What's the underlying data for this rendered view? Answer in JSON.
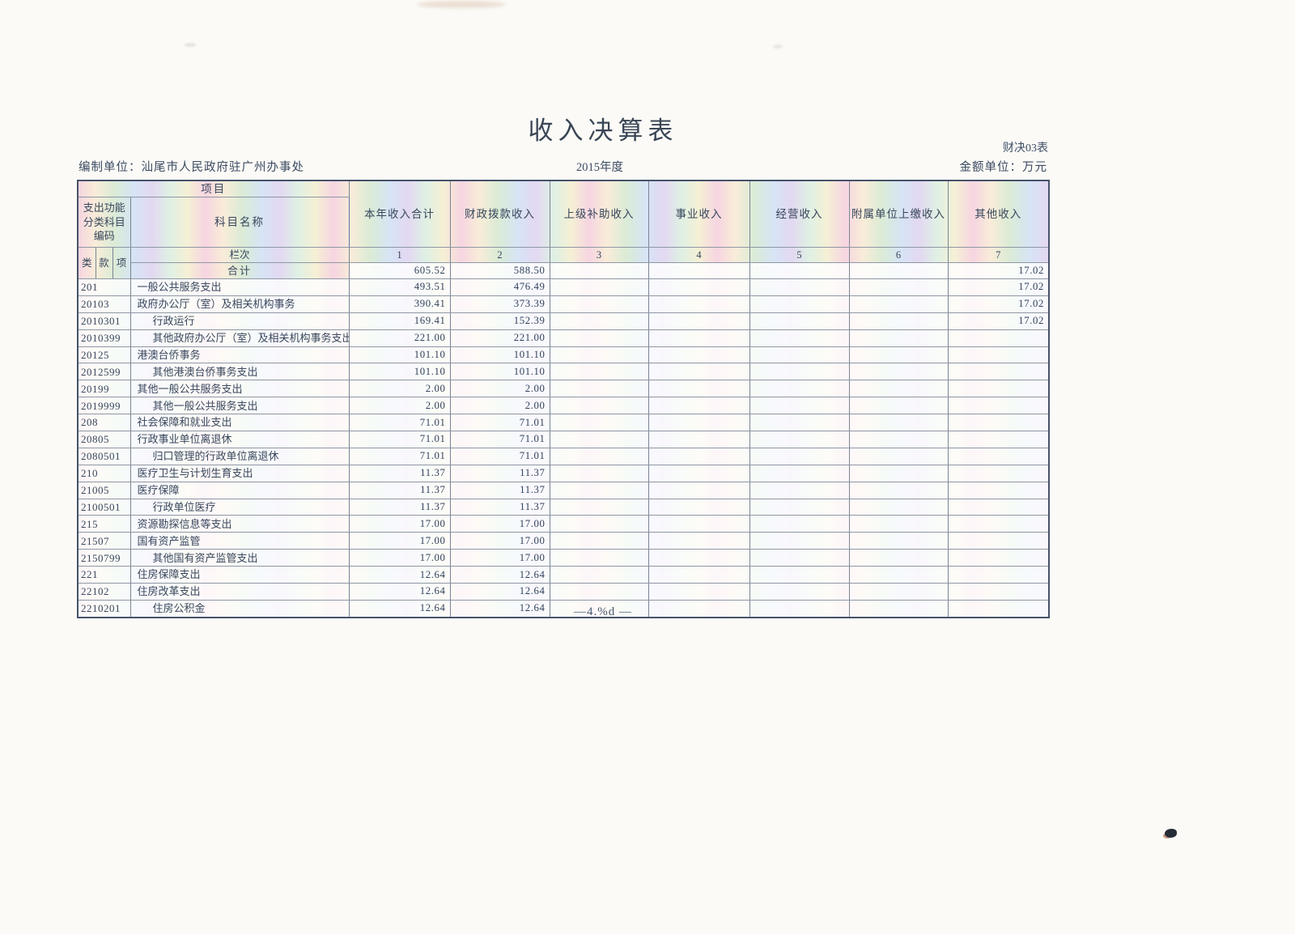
{
  "page": {
    "title": "收入决算表",
    "form_code": "财决03表",
    "prepared_by": "编制单位：汕尾市人民政府驻广州办事处",
    "year": "2015年度",
    "unit_label": "金额单位：万元",
    "footer": "—4.%d —"
  },
  "table": {
    "header": {
      "project_label": "项目",
      "code_label": "支出功能分类科目编码",
      "subject_label": "科目名称",
      "code_sub_labels": [
        "类",
        "款",
        "项"
      ],
      "column_row_label": "栏次",
      "total_row_label": "合计",
      "columns": [
        "本年收入合计",
        "财政拨款收入",
        "上级补助收入",
        "事业收入",
        "经营收入",
        "附属单位上缴收入",
        "其他收入"
      ],
      "column_numbers": [
        "1",
        "2",
        "3",
        "4",
        "5",
        "6",
        "7"
      ]
    },
    "total_row": {
      "values": [
        "605.52",
        "588.50",
        "",
        "",
        "",
        "",
        "17.02"
      ]
    },
    "rows": [
      {
        "code": "201",
        "name": "一般公共服务支出",
        "indent": 0,
        "values": [
          "493.51",
          "476.49",
          "",
          "",
          "",
          "",
          "17.02"
        ]
      },
      {
        "code": "20103",
        "name": "政府办公厅（室）及相关机构事务",
        "indent": 0,
        "values": [
          "390.41",
          "373.39",
          "",
          "",
          "",
          "",
          "17.02"
        ]
      },
      {
        "code": "2010301",
        "name": "行政运行",
        "indent": 1,
        "values": [
          "169.41",
          "152.39",
          "",
          "",
          "",
          "",
          "17.02"
        ]
      },
      {
        "code": "2010399",
        "name": "其他政府办公厅（室）及相关机构事务支出",
        "indent": 1,
        "values": [
          "221.00",
          "221.00",
          "",
          "",
          "",
          "",
          ""
        ]
      },
      {
        "code": "20125",
        "name": "港澳台侨事务",
        "indent": 0,
        "values": [
          "101.10",
          "101.10",
          "",
          "",
          "",
          "",
          ""
        ]
      },
      {
        "code": "2012599",
        "name": "其他港澳台侨事务支出",
        "indent": 1,
        "values": [
          "101.10",
          "101.10",
          "",
          "",
          "",
          "",
          ""
        ]
      },
      {
        "code": "20199",
        "name": "其他一般公共服务支出",
        "indent": 0,
        "values": [
          "2.00",
          "2.00",
          "",
          "",
          "",
          "",
          ""
        ]
      },
      {
        "code": "2019999",
        "name": "其他一般公共服务支出",
        "indent": 1,
        "values": [
          "2.00",
          "2.00",
          "",
          "",
          "",
          "",
          ""
        ]
      },
      {
        "code": "208",
        "name": "社会保障和就业支出",
        "indent": 0,
        "values": [
          "71.01",
          "71.01",
          "",
          "",
          "",
          "",
          ""
        ]
      },
      {
        "code": "20805",
        "name": "行政事业单位离退休",
        "indent": 0,
        "values": [
          "71.01",
          "71.01",
          "",
          "",
          "",
          "",
          ""
        ]
      },
      {
        "code": "2080501",
        "name": "归口管理的行政单位离退休",
        "indent": 1,
        "values": [
          "71.01",
          "71.01",
          "",
          "",
          "",
          "",
          ""
        ]
      },
      {
        "code": "210",
        "name": "医疗卫生与计划生育支出",
        "indent": 0,
        "values": [
          "11.37",
          "11.37",
          "",
          "",
          "",
          "",
          ""
        ]
      },
      {
        "code": "21005",
        "name": "医疗保障",
        "indent": 0,
        "values": [
          "11.37",
          "11.37",
          "",
          "",
          "",
          "",
          ""
        ]
      },
      {
        "code": "2100501",
        "name": "行政单位医疗",
        "indent": 1,
        "values": [
          "11.37",
          "11.37",
          "",
          "",
          "",
          "",
          ""
        ]
      },
      {
        "code": "215",
        "name": "资源勘探信息等支出",
        "indent": 0,
        "values": [
          "17.00",
          "17.00",
          "",
          "",
          "",
          "",
          ""
        ]
      },
      {
        "code": "21507",
        "name": "国有资产监管",
        "indent": 0,
        "values": [
          "17.00",
          "17.00",
          "",
          "",
          "",
          "",
          ""
        ]
      },
      {
        "code": "2150799",
        "name": "其他国有资产监管支出",
        "indent": 1,
        "values": [
          "17.00",
          "17.00",
          "",
          "",
          "",
          "",
          ""
        ]
      },
      {
        "code": "221",
        "name": "住房保障支出",
        "indent": 0,
        "values": [
          "12.64",
          "12.64",
          "",
          "",
          "",
          "",
          ""
        ]
      },
      {
        "code": "22102",
        "name": "住房改革支出",
        "indent": 0,
        "values": [
          "12.64",
          "12.64",
          "",
          "",
          "",
          "",
          ""
        ]
      },
      {
        "code": "2210201",
        "name": "住房公积金",
        "indent": 1,
        "values": [
          "12.64",
          "12.64",
          "",
          "",
          "",
          "",
          ""
        ]
      }
    ]
  },
  "colors": {
    "text": "#3b4a61",
    "paper": "#fbfaf6",
    "pastel_stripes": [
      "#f5cddc",
      "#f8e9d1",
      "#d3e8cf",
      "#cfdff4",
      "#ded1ef",
      "#d9eedf",
      "#f4edcd"
    ]
  }
}
